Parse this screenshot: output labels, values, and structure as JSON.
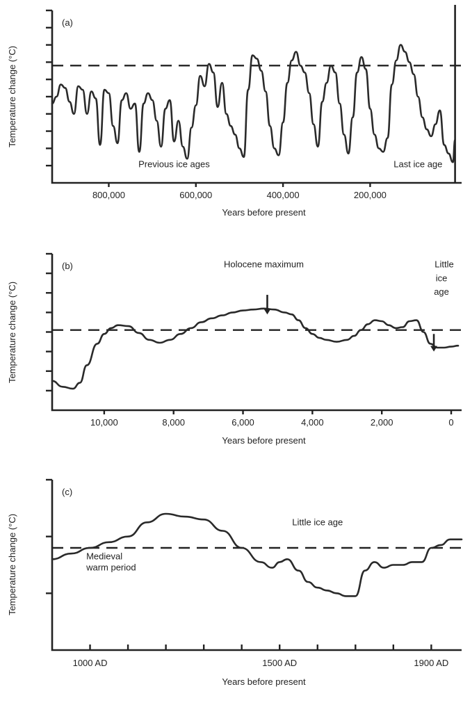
{
  "chart_data": [
    {
      "type": "line",
      "panel_label": "(a)",
      "ylabel": "Temperature change (°C)",
      "xlabel": "Years before present",
      "xlim": [
        930000,
        -10000
      ],
      "ylim": [
        0,
        10
      ],
      "y_ticks": [
        1,
        2,
        3,
        4,
        5,
        6,
        7,
        8,
        9
      ],
      "x_tick_labels": [
        {
          "value": 800000,
          "label": "800,000"
        },
        {
          "value": 600000,
          "label": "600,000"
        },
        {
          "value": 400000,
          "label": "400,000"
        },
        {
          "value": 200000,
          "label": "200,000"
        }
      ],
      "reference_line_y": 6.8,
      "vertical_line_x": 5000,
      "annotations": [
        {
          "text": "Previous ice ages",
          "x": 650000,
          "y": 0.9
        },
        {
          "text": "Last ice age",
          "x": 90000,
          "y": 0.9
        }
      ],
      "series": [
        {
          "x": [
            930000,
            920000,
            910000,
            900000,
            890000,
            880000,
            870000,
            860000,
            850000,
            840000,
            830000,
            820000,
            810000,
            800000,
            790000,
            780000,
            770000,
            760000,
            750000,
            740000,
            730000,
            720000,
            710000,
            700000,
            690000,
            680000,
            670000,
            660000,
            650000,
            640000,
            630000,
            620000,
            610000,
            600000,
            590000,
            580000,
            570000,
            560000,
            550000,
            540000,
            530000,
            520000,
            510000,
            500000,
            490000,
            480000,
            470000,
            460000,
            450000,
            440000,
            430000,
            420000,
            410000,
            400000,
            390000,
            380000,
            370000,
            360000,
            350000,
            340000,
            330000,
            320000,
            310000,
            300000,
            290000,
            280000,
            270000,
            260000,
            250000,
            240000,
            230000,
            220000,
            210000,
            200000,
            190000,
            180000,
            170000,
            160000,
            150000,
            140000,
            130000,
            120000,
            110000,
            100000,
            90000,
            80000,
            70000,
            60000,
            50000,
            40000,
            30000,
            20000,
            10000,
            5000
          ],
          "y": [
            4.6,
            5,
            5.7,
            5.5,
            4.7,
            4,
            5.6,
            5.4,
            4,
            5.3,
            4.9,
            2.2,
            5.4,
            5.2,
            3.3,
            2.3,
            4.8,
            5.2,
            4.3,
            4.6,
            1.8,
            4.6,
            5.2,
            4.8,
            3.6,
            2.1,
            4.3,
            4.8,
            2.4,
            3.6,
            2.1,
            1.4,
            3.2,
            4.5,
            6.2,
            5.6,
            6.9,
            6.4,
            4.4,
            5.8,
            4,
            3.3,
            2.8,
            2,
            1.5,
            5.4,
            7.4,
            7.2,
            6.5,
            5.3,
            3.3,
            2,
            1.6,
            3.5,
            5.8,
            7.1,
            7.6,
            6.8,
            6.4,
            5.2,
            3.4,
            2.1,
            4.7,
            5.8,
            6.8,
            6.4,
            4.6,
            2.8,
            1.7,
            3.8,
            6.4,
            7.3,
            6.6,
            4.3,
            2.8,
            2,
            1.8,
            2.6,
            5.7,
            7.1,
            8,
            7.6,
            7,
            6.3,
            5,
            3.8,
            3.1,
            2.7,
            3.4,
            4.2,
            2.2,
            1.7,
            1.2,
            2.5
          ]
        }
      ]
    },
    {
      "type": "line",
      "panel_label": "(b)",
      "ylabel": "Temperature change (°C)",
      "xlabel": "Years before present",
      "xlim": [
        11500,
        -300
      ],
      "ylim": [
        0,
        8
      ],
      "y_ticks": [
        1,
        2,
        3,
        4,
        5,
        6,
        7
      ],
      "x_tick_labels": [
        {
          "value": 10000,
          "label": "10,000"
        },
        {
          "value": 8000,
          "label": "8,000"
        },
        {
          "value": 6000,
          "label": "6,000"
        },
        {
          "value": 4000,
          "label": "4,000"
        },
        {
          "value": 2000,
          "label": "2,000"
        },
        {
          "value": 0,
          "label": "0"
        }
      ],
      "reference_line_y": 4.1,
      "annotations": [
        {
          "text": "Holocene maximum",
          "x": 5400,
          "y": 7.3
        },
        {
          "text": "Little",
          "x": 200,
          "y": 7.3
        },
        {
          "text": "ice",
          "x": 280,
          "y": 6.6
        },
        {
          "text": "age",
          "x": 280,
          "y": 5.9
        }
      ],
      "arrows": [
        {
          "x": 5300,
          "y_from": 5.9,
          "y_to": 4.9
        },
        {
          "x": 500,
          "y_from": 3.9,
          "y_to": 3.0
        }
      ],
      "series": [
        {
          "x": [
            11500,
            11200,
            10900,
            10700,
            10500,
            10200,
            10000,
            9800,
            9600,
            9300,
            9000,
            8700,
            8400,
            8100,
            7800,
            7500,
            7200,
            6900,
            6600,
            6300,
            6000,
            5700,
            5400,
            5100,
            4800,
            4600,
            4400,
            4200,
            4000,
            3800,
            3600,
            3300,
            3000,
            2800,
            2600,
            2400,
            2200,
            2000,
            1800,
            1600,
            1400,
            1200,
            1000,
            800,
            600,
            400,
            200,
            0,
            -200
          ],
          "y": [
            1.5,
            1.2,
            1.1,
            1.4,
            2.3,
            3.4,
            3.9,
            4.2,
            4.35,
            4.3,
            3.95,
            3.6,
            3.45,
            3.6,
            3.9,
            4.2,
            4.5,
            4.7,
            4.85,
            5,
            5.1,
            5.15,
            5.2,
            5.15,
            5,
            4.9,
            4.6,
            4.2,
            3.9,
            3.7,
            3.6,
            3.5,
            3.6,
            3.8,
            4.1,
            4.4,
            4.6,
            4.55,
            4.35,
            4.2,
            4.25,
            4.55,
            4.6,
            4,
            3.4,
            3.2,
            3.2,
            3.25,
            3.3
          ]
        }
      ]
    },
    {
      "type": "line",
      "panel_label": "(c)",
      "ylabel": "Temperature change (°C)",
      "xlabel": "Years before present",
      "xlim": [
        900,
        1980
      ],
      "ylim": [
        0,
        3
      ],
      "y_ticks": [
        1,
        2
      ],
      "x_tick_labels": [
        {
          "value": 1000,
          "label": "1000 AD"
        },
        {
          "value": 1500,
          "label": "1500 AD"
        },
        {
          "value": 1900,
          "label": "1900 AD"
        }
      ],
      "x_minor_ticks": [
        1000,
        1100,
        1200,
        1300,
        1400,
        1500,
        1600,
        1700,
        1800,
        1900
      ],
      "reference_line_y": 1.8,
      "annotations": [
        {
          "text": "Little ice age",
          "x": 1600,
          "y": 2.2
        },
        {
          "text": "Medieval",
          "x": 990,
          "y": 1.6
        },
        {
          "text": "warm period",
          "x": 990,
          "y": 1.4
        }
      ],
      "series": [
        {
          "x": [
            900,
            950,
            1000,
            1050,
            1100,
            1150,
            1200,
            1250,
            1300,
            1350,
            1400,
            1450,
            1480,
            1500,
            1520,
            1550,
            1575,
            1600,
            1625,
            1650,
            1675,
            1700,
            1725,
            1750,
            1775,
            1800,
            1825,
            1850,
            1875,
            1900,
            1925,
            1950,
            1980
          ],
          "y": [
            1.6,
            1.7,
            1.8,
            1.9,
            2.0,
            2.25,
            2.4,
            2.35,
            2.3,
            2.1,
            1.8,
            1.55,
            1.45,
            1.55,
            1.6,
            1.4,
            1.2,
            1.1,
            1.05,
            1.0,
            0.95,
            0.95,
            1.4,
            1.55,
            1.45,
            1.5,
            1.5,
            1.55,
            1.55,
            1.8,
            1.85,
            1.95,
            1.95
          ]
        }
      ]
    }
  ]
}
